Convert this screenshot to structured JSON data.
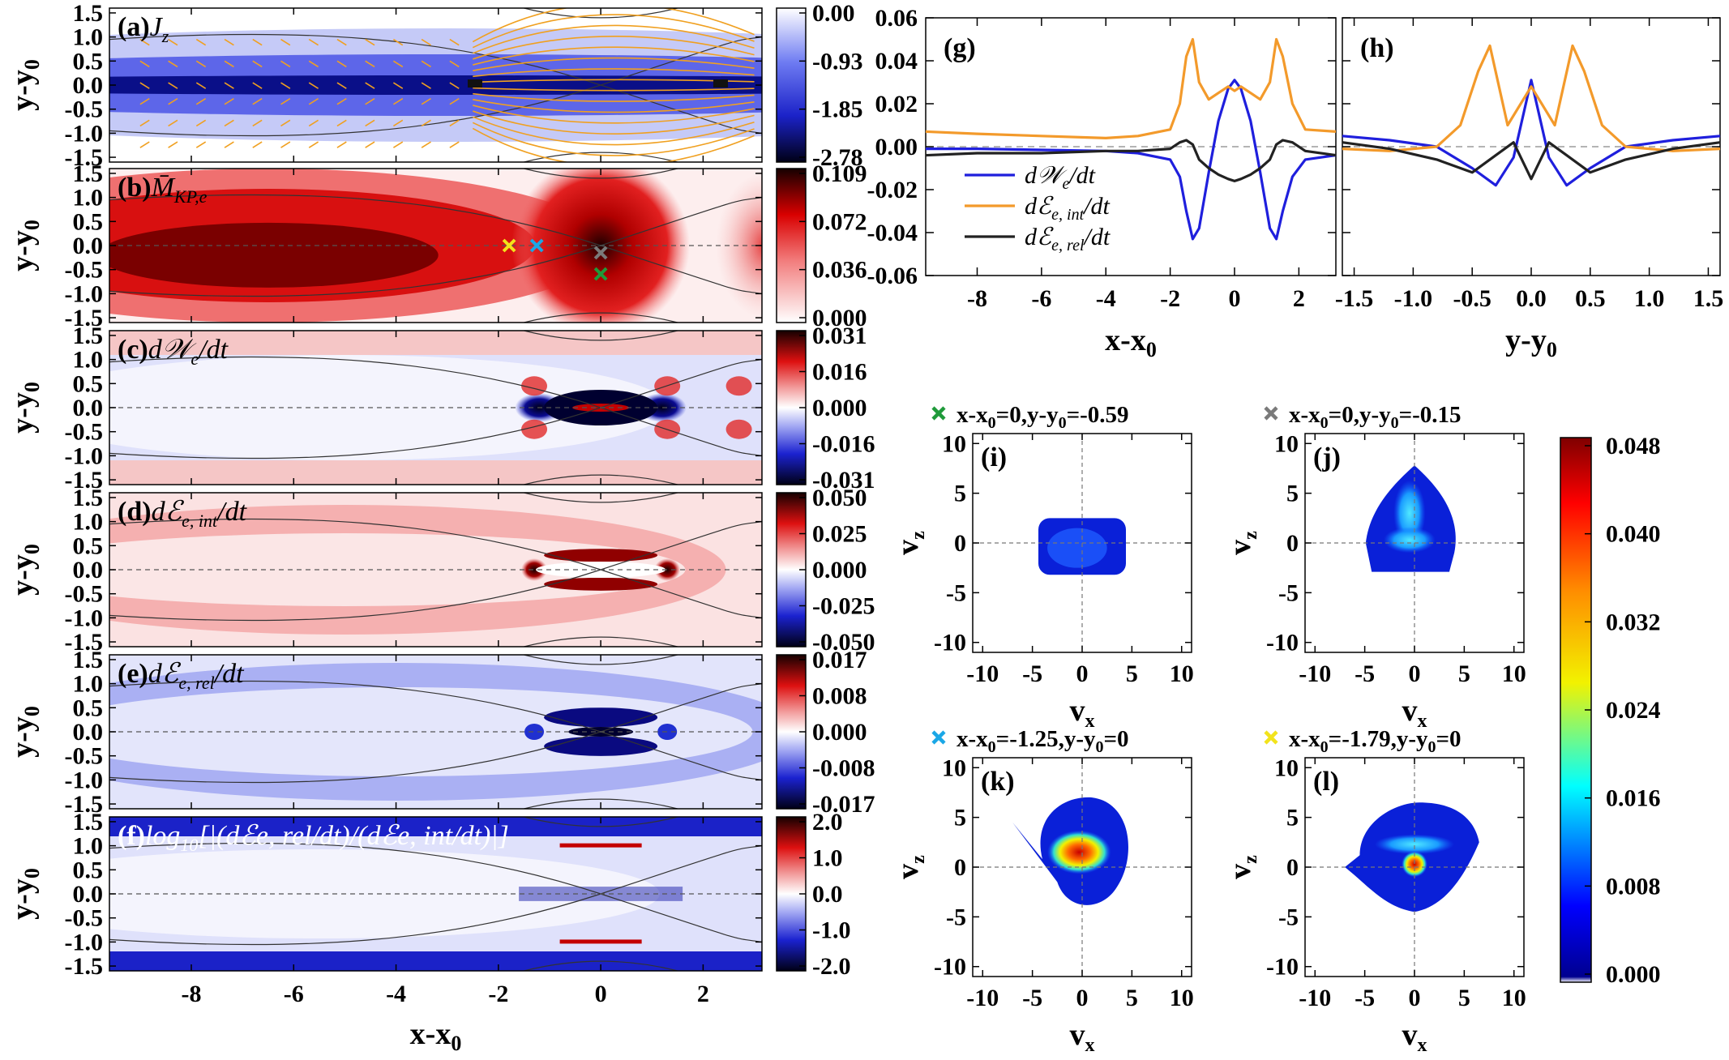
{
  "left_panels": {
    "x_ticks": [
      "-8",
      "-6",
      "-4",
      "-2",
      "0",
      "2"
    ],
    "x_tick_values": [
      -8,
      -6,
      -4,
      -2,
      0,
      2
    ],
    "x_range": [
      -9.6,
      3.15
    ],
    "y_range": [
      -1.6,
      1.6
    ],
    "y_ticks": [
      "1.5",
      "1.0",
      "0.5",
      "0.0",
      "-0.5",
      "-1.0",
      "-1.5"
    ],
    "y_tick_values": [
      1.5,
      1.0,
      0.5,
      0.0,
      -0.5,
      -1.0,
      -1.5
    ],
    "ylabel": "y-y",
    "ylabel_sub": "0",
    "xlabel": "x-x",
    "xlabel_sub": "0",
    "panels": [
      {
        "id": "a",
        "label": "(a)",
        "quantity": "J",
        "quantity_sub": "z",
        "colormap": "blue",
        "cbar_ticks": [
          "0.00",
          "-0.93",
          "-1.85",
          "-2.78"
        ]
      },
      {
        "id": "b",
        "label": "(b)",
        "quantity": "M̄",
        "quantity_sub": "KP,e",
        "colormap": "red",
        "cbar_ticks": [
          "0.109",
          "0.072",
          "0.036",
          "0.000"
        ]
      },
      {
        "id": "c",
        "label": "(c)",
        "quantity": "d𝒲",
        "quantity_sub": "e",
        "quantity_tail": "/dt",
        "colormap": "div",
        "cbar_ticks": [
          "0.031",
          "0.016",
          "0.000",
          "-0.016",
          "-0.031"
        ]
      },
      {
        "id": "d",
        "label": "(d)",
        "quantity": "dℰ",
        "quantity_sub": "e, int",
        "quantity_tail": "/dt",
        "colormap": "div",
        "cbar_ticks": [
          "0.050",
          "0.025",
          "0.000",
          "-0.025",
          "-0.050"
        ]
      },
      {
        "id": "e",
        "label": "(e)",
        "quantity": "dℰ",
        "quantity_sub": "e, rel",
        "quantity_tail": "/dt",
        "colormap": "div",
        "cbar_ticks": [
          "0.017",
          "0.008",
          "0.000",
          "-0.008",
          "-0.017"
        ]
      },
      {
        "id": "f",
        "label": "(f)",
        "quantity": "log",
        "quantity_sub": "10",
        "quantity_tail": "[|(dℰe, rel/dt)/(dℰe, int/dt)|]",
        "colormap": "div",
        "cbar_ticks": [
          "2.0",
          "1.0",
          "0.0",
          "-1.0",
          "-2.0"
        ]
      }
    ],
    "markers": [
      {
        "name": "yellow-x",
        "x": -1.79,
        "y": 0,
        "color": "#f2e31b"
      },
      {
        "name": "cyan-x",
        "x": -1.25,
        "y": 0,
        "color": "#1aa7e6"
      },
      {
        "name": "gray-x",
        "x": 0,
        "y": -0.15,
        "color": "#7a7a7a"
      },
      {
        "name": "green-x",
        "x": 0,
        "y": -0.59,
        "color": "#1f9a3a"
      }
    ]
  },
  "line_plots": {
    "y_ticks": [
      "0.06",
      "0.04",
      "0.02",
      "0.00",
      "-0.02",
      "-0.04",
      "-0.06"
    ],
    "y_tick_values": [
      0.06,
      0.04,
      0.02,
      0.0,
      -0.02,
      -0.04,
      -0.06
    ],
    "g": {
      "label": "(g)",
      "xlabel": "x-x",
      "xlabel_sub": "0",
      "x_ticks": [
        "-8",
        "-6",
        "-4",
        "-2",
        "0",
        "2"
      ],
      "x_tick_values": [
        -8,
        -6,
        -4,
        -2,
        0,
        2
      ],
      "x_range": [
        -9.6,
        3.15
      ]
    },
    "h": {
      "label": "(h)",
      "xlabel": "y-y",
      "xlabel_sub": "0",
      "x_ticks": [
        "-1.5",
        "-1.0",
        "-0.5",
        "0.0",
        "0.5",
        "1.0",
        "1.5"
      ],
      "x_tick_values": [
        -1.5,
        -1.0,
        -0.5,
        0.0,
        0.5,
        1.0,
        1.5
      ],
      "x_range": [
        -1.6,
        1.6
      ]
    },
    "legend": [
      {
        "text": "d𝒲",
        "sub": "e",
        "tail": "/dt",
        "color": "#1f1fdd"
      },
      {
        "text": "dℰ",
        "sub": "e, int",
        "tail": "/dt",
        "color": "#f39a2b"
      },
      {
        "text": "dℰ",
        "sub": "e, rel",
        "tail": "/dt",
        "color": "#222222"
      }
    ]
  },
  "chart_data": [
    {
      "type": "line",
      "panel": "g",
      "xlabel": "x-x0",
      "ylabel": "",
      "xlim": [
        -9.6,
        3.15
      ],
      "ylim": [
        -0.06,
        0.06
      ],
      "series": [
        {
          "name": "dWe/dt",
          "color": "#1f1fdd",
          "x": [
            -9.6,
            -8,
            -6,
            -4,
            -3,
            -2,
            -1.7,
            -1.5,
            -1.3,
            -1.1,
            -0.8,
            -0.5,
            -0.2,
            0,
            0.2,
            0.5,
            0.8,
            1.1,
            1.3,
            1.5,
            1.8,
            2.2,
            3.15
          ],
          "y": [
            -0.001,
            -0.001,
            -0.0015,
            -0.002,
            -0.003,
            -0.006,
            -0.014,
            -0.03,
            -0.043,
            -0.038,
            -0.012,
            0.012,
            0.027,
            0.031,
            0.027,
            0.012,
            -0.012,
            -0.038,
            -0.043,
            -0.03,
            -0.014,
            -0.006,
            -0.004
          ]
        },
        {
          "name": "dEe,int/dt",
          "color": "#f39a2b",
          "x": [
            -9.6,
            -8,
            -6,
            -4,
            -3,
            -2,
            -1.7,
            -1.5,
            -1.3,
            -1.1,
            -0.8,
            -0.5,
            -0.2,
            0,
            0.2,
            0.5,
            0.8,
            1.1,
            1.3,
            1.5,
            1.8,
            2.2,
            3.15
          ],
          "y": [
            0.007,
            0.006,
            0.005,
            0.004,
            0.005,
            0.008,
            0.02,
            0.042,
            0.05,
            0.03,
            0.022,
            0.025,
            0.028,
            0.026,
            0.028,
            0.025,
            0.022,
            0.03,
            0.05,
            0.042,
            0.02,
            0.008,
            0.007
          ]
        },
        {
          "name": "dEe,rel/dt",
          "color": "#222222",
          "x": [
            -9.6,
            -8,
            -6,
            -4,
            -3,
            -2,
            -1.7,
            -1.5,
            -1.3,
            -1.1,
            -0.8,
            -0.5,
            -0.2,
            0,
            0.2,
            0.5,
            0.8,
            1.1,
            1.3,
            1.5,
            1.8,
            2.2,
            3.15
          ],
          "y": [
            -0.004,
            -0.003,
            -0.003,
            -0.002,
            -0.002,
            -0.001,
            0.002,
            0.003,
            0.001,
            -0.006,
            -0.01,
            -0.013,
            -0.015,
            -0.016,
            -0.015,
            -0.013,
            -0.01,
            -0.006,
            0.001,
            0.003,
            0.002,
            -0.002,
            -0.004
          ]
        }
      ]
    },
    {
      "type": "line",
      "panel": "h",
      "xlabel": "y-y0",
      "ylabel": "",
      "xlim": [
        -1.6,
        1.6
      ],
      "ylim": [
        -0.06,
        0.06
      ],
      "series": [
        {
          "name": "dWe/dt",
          "color": "#1f1fdd",
          "x": [
            -1.6,
            -1.2,
            -0.8,
            -0.5,
            -0.3,
            -0.15,
            0,
            0.15,
            0.3,
            0.5,
            0.8,
            1.2,
            1.6
          ],
          "y": [
            0.005,
            0.003,
            0.0,
            -0.01,
            -0.018,
            -0.005,
            0.031,
            -0.005,
            -0.018,
            -0.01,
            0.0,
            0.003,
            0.005
          ]
        },
        {
          "name": "dEe,int/dt",
          "color": "#f39a2b",
          "x": [
            -1.6,
            -1.2,
            -0.8,
            -0.6,
            -0.45,
            -0.35,
            -0.2,
            0,
            0.2,
            0.35,
            0.45,
            0.6,
            0.8,
            1.2,
            1.6
          ],
          "y": [
            -0.001,
            -0.002,
            0.0,
            0.01,
            0.035,
            0.047,
            0.01,
            0.028,
            0.01,
            0.047,
            0.035,
            0.01,
            0.0,
            -0.002,
            -0.001
          ]
        },
        {
          "name": "dEe,rel/dt",
          "color": "#222222",
          "x": [
            -1.6,
            -1.2,
            -0.8,
            -0.5,
            -0.3,
            -0.15,
            0,
            0.15,
            0.3,
            0.5,
            0.8,
            1.2,
            1.6
          ],
          "y": [
            0.002,
            -0.001,
            -0.006,
            -0.012,
            -0.004,
            0.002,
            -0.015,
            0.002,
            -0.004,
            -0.012,
            -0.006,
            -0.001,
            0.002
          ]
        }
      ]
    },
    {
      "type": "heatmap",
      "panel": "i",
      "title": "x-x0=0,y-y0=-0.59",
      "xlabel": "vx",
      "ylabel": "vz",
      "xlim": [
        -11,
        11
      ],
      "ylim": [
        -11,
        11
      ]
    },
    {
      "type": "heatmap",
      "panel": "j",
      "title": "x-x0=0,y-y0=-0.15",
      "xlabel": "vx",
      "ylabel": "vz",
      "xlim": [
        -11,
        11
      ],
      "ylim": [
        -11,
        11
      ]
    },
    {
      "type": "heatmap",
      "panel": "k",
      "title": "x-x0=-1.25,y-y0=0",
      "xlabel": "vx",
      "ylabel": "vz",
      "xlim": [
        -11,
        11
      ],
      "ylim": [
        -11,
        11
      ]
    },
    {
      "type": "heatmap",
      "panel": "l",
      "title": "x-x0=-1.79,y-y0=0",
      "xlabel": "vx",
      "ylabel": "vz",
      "xlim": [
        -11,
        11
      ],
      "ylim": [
        -11,
        11
      ]
    }
  ],
  "vdf_panels": {
    "ticks": [
      "10",
      "5",
      "0",
      "-5",
      "-10"
    ],
    "tick_values": [
      10,
      5,
      0,
      -5,
      -10
    ],
    "xticks": [
      "-10",
      "-5",
      "0",
      "5",
      "10"
    ],
    "xtick_values": [
      -10,
      -5,
      0,
      5,
      10
    ],
    "xlabel": "v",
    "xlabel_sub": "x",
    "ylabel": "v",
    "ylabel_sub": "z",
    "panels": [
      {
        "id": "i",
        "label": "(i)",
        "title_parts": [
          "x-x",
          "0",
          "=0,y-y",
          "0",
          "=-0.59"
        ],
        "marker_color": "#1f9a3a",
        "shape": "box",
        "cx": 0,
        "cy": 0
      },
      {
        "id": "j",
        "label": "(j)",
        "title_parts": [
          "x-x",
          "0",
          "=0,y-y",
          "0",
          "=-0.15"
        ],
        "marker_color": "#7a7a7a",
        "shape": "drop",
        "cx": 0,
        "cy": 1.5
      },
      {
        "id": "k",
        "label": "(k)",
        "title_parts": [
          "x-x",
          "0",
          "=-1.25,y-y",
          "0",
          "=0"
        ],
        "marker_color": "#1aa7e6",
        "shape": "blob",
        "cx": 0,
        "cy": 0.5
      },
      {
        "id": "l",
        "label": "(l)",
        "title_parts": [
          "x-x",
          "0",
          "=-1.79,y-y",
          "0",
          "=0"
        ],
        "marker_color": "#f2e31b",
        "shape": "wide",
        "cx": 0,
        "cy": 0.5
      }
    ],
    "colorbar_ticks": [
      "0.048",
      "0.040",
      "0.032",
      "0.024",
      "0.016",
      "0.008",
      "0.000"
    ],
    "colorbar_values": [
      0.048,
      0.04,
      0.032,
      0.024,
      0.016,
      0.008,
      0.0
    ]
  }
}
